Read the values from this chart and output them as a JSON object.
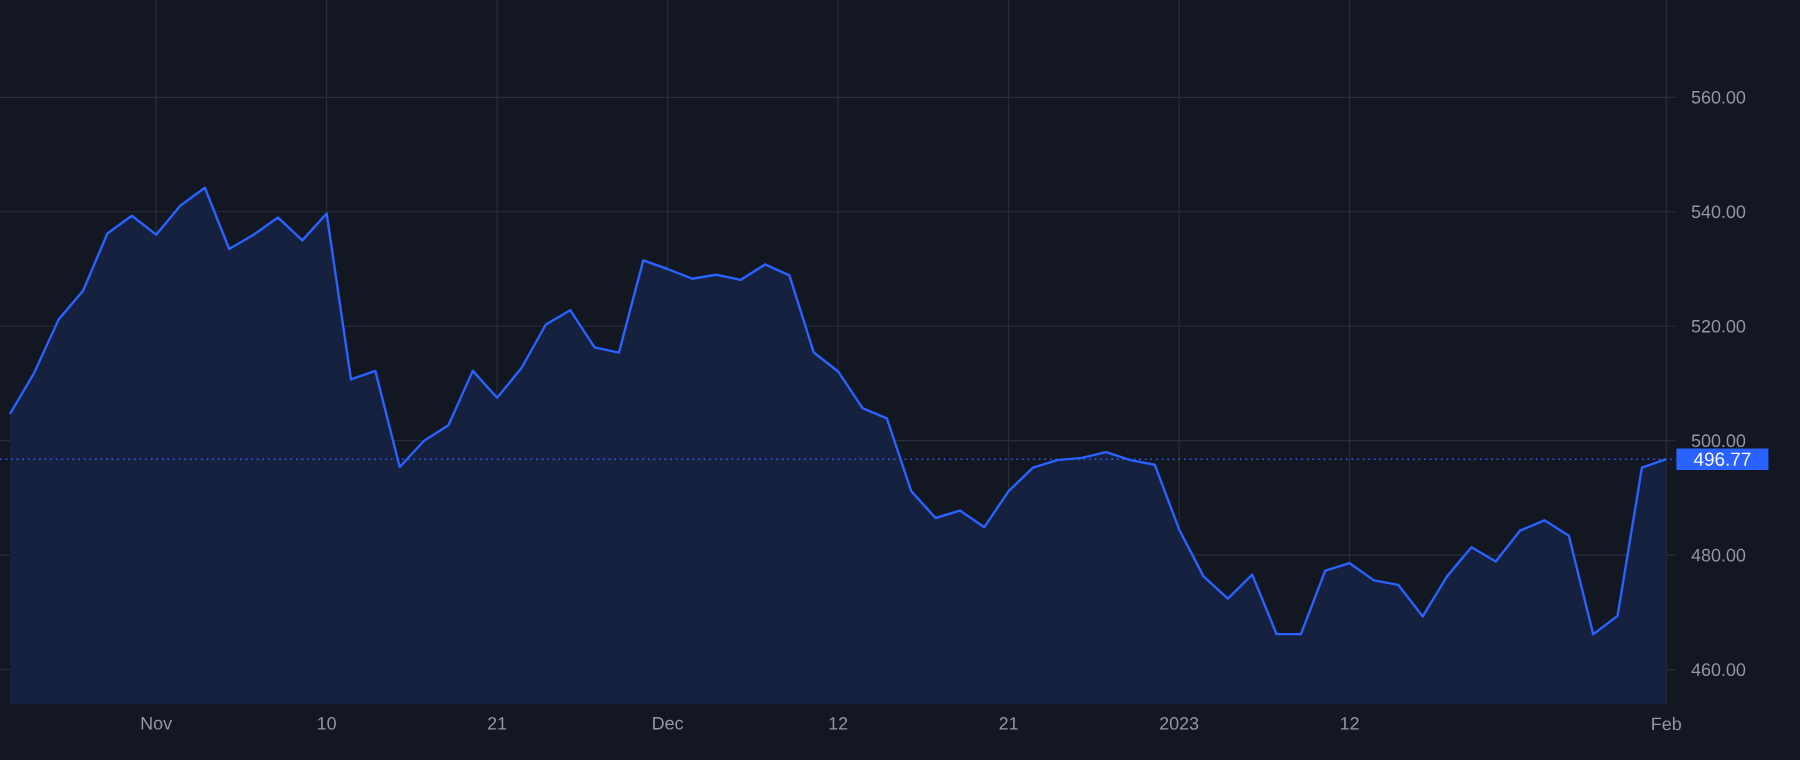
{
  "chart_data": {
    "type": "area",
    "categories": [
      null,
      null,
      null,
      null,
      null,
      null,
      "Nov",
      null,
      null,
      null,
      null,
      null,
      null,
      "10",
      null,
      null,
      null,
      null,
      null,
      null,
      "21",
      null,
      null,
      null,
      null,
      null,
      null,
      "Dec",
      null,
      null,
      null,
      null,
      null,
      null,
      "12",
      null,
      null,
      null,
      null,
      null,
      null,
      "21",
      null,
      null,
      null,
      null,
      null,
      null,
      "2023",
      null,
      null,
      null,
      null,
      null,
      null,
      "12",
      null,
      null,
      null,
      null,
      null,
      null,
      null,
      null,
      null,
      null,
      null,
      null,
      "Feb"
    ],
    "series": [
      {
        "color": "#2962ff",
        "values": [
          504.7,
          511.9,
          521.2,
          526.2,
          536.2,
          539.3,
          536.0,
          541.1,
          544.2,
          533.5,
          536.0,
          539.0,
          535.0,
          539.7,
          510.7,
          512.2,
          495.4,
          500.0,
          502.7,
          512.2,
          507.5,
          512.7,
          520.3,
          522.8,
          516.3,
          515.4,
          531.5,
          530.0,
          528.3,
          529.0,
          528.1,
          530.8,
          528.9,
          515.4,
          512.1,
          505.7,
          503.9,
          491.2,
          486.5,
          487.8,
          484.9,
          491.2,
          495.3,
          496.6,
          497.0,
          498.0,
          496.6,
          495.8,
          484.5,
          476.3,
          472.4,
          476.6,
          466.2,
          466.2,
          477.3,
          478.6,
          475.6,
          474.8,
          469.3,
          476.3,
          481.4,
          478.9,
          484.3,
          486.1,
          483.4,
          466.2,
          469.4,
          495.3,
          496.77
        ]
      }
    ],
    "ylim": [
      454,
      577
    ],
    "yticks": [
      {
        "value": 460,
        "label": "460.00"
      },
      {
        "value": 480,
        "label": "480.00"
      },
      {
        "value": 500,
        "label": "500.00"
      },
      {
        "value": 520,
        "label": "520.00"
      },
      {
        "value": 540,
        "label": "540.00"
      },
      {
        "value": 560,
        "label": "560.00"
      }
    ],
    "grid": true,
    "ref_lines": [
      {
        "axis": "y",
        "value": 496.77,
        "label": "496.77",
        "color": "#2962ff",
        "line_style": "dotted"
      }
    ]
  }
}
